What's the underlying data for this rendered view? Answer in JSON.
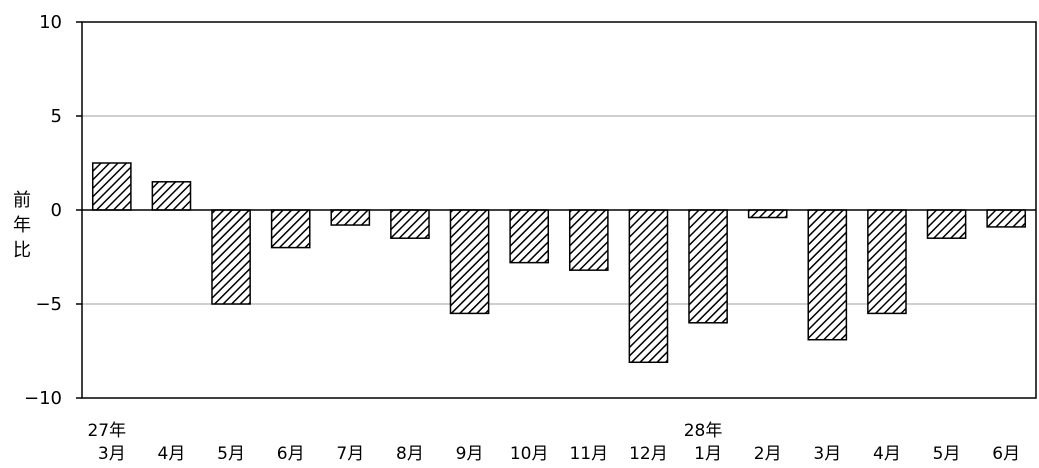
{
  "chart_data": {
    "type": "bar",
    "title": "",
    "xlabel": "",
    "ylabel": "前年比",
    "ylim": [
      -10,
      10
    ],
    "yticks": [
      10,
      5,
      0,
      -5,
      -10
    ],
    "yticks_text": [
      "10",
      "5",
      "0",
      "−5",
      "−10"
    ],
    "grid": true,
    "legend": "none",
    "categories": [
      "3月",
      "4月",
      "5月",
      "6月",
      "7月",
      "8月",
      "9月",
      "10月",
      "11月",
      "12月",
      "1月",
      "2月",
      "3月",
      "4月",
      "5月",
      "6月"
    ],
    "year_labels": [
      {
        "category_index": 0,
        "text": "27年"
      },
      {
        "category_index": 10,
        "text": "28年"
      }
    ],
    "values": [
      2.5,
      1.5,
      -5.0,
      -2.0,
      -0.8,
      -1.5,
      -5.5,
      -2.8,
      -3.2,
      -8.1,
      -6.0,
      -0.4,
      -6.9,
      -5.5,
      -1.5,
      -0.9
    ],
    "bar_fill": "hatched",
    "bar_color": "#000000",
    "grid_color": "#bfbfbf"
  }
}
